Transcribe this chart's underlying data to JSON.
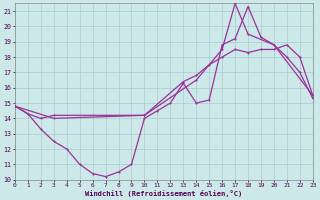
{
  "xlabel": "Windchill (Refroidissement éolien,°C)",
  "xlim": [
    0,
    23
  ],
  "ylim": [
    10,
    21.5
  ],
  "yticks": [
    10,
    11,
    12,
    13,
    14,
    15,
    16,
    17,
    18,
    19,
    20,
    21
  ],
  "xticks": [
    0,
    1,
    2,
    3,
    4,
    5,
    6,
    7,
    8,
    9,
    10,
    11,
    12,
    13,
    14,
    15,
    16,
    17,
    18,
    19,
    20,
    21,
    22,
    23
  ],
  "bg_color": "#cce8e8",
  "grid_color": "#aacccc",
  "line_color": "#993399",
  "line1_x": [
    0,
    1,
    2,
    3,
    4,
    5,
    6,
    7,
    8,
    9,
    10,
    11,
    12,
    13,
    14,
    15,
    16,
    17,
    18,
    19,
    20,
    21,
    22,
    23
  ],
  "line1_y": [
    14.8,
    14.3,
    13.3,
    12.5,
    12.0,
    11.0,
    10.4,
    10.2,
    10.5,
    11.0,
    14.0,
    14.5,
    15.0,
    16.3,
    15.0,
    15.2,
    18.8,
    19.2,
    21.3,
    19.3,
    18.8,
    18.0,
    17.0,
    15.3
  ],
  "line2_x": [
    0,
    1,
    2,
    3,
    10,
    13,
    14,
    15,
    16,
    17,
    18,
    19,
    20,
    21,
    22,
    23
  ],
  "line2_y": [
    14.8,
    14.3,
    14.0,
    14.2,
    14.2,
    16.4,
    16.8,
    17.5,
    18.0,
    18.5,
    18.3,
    18.5,
    18.5,
    18.8,
    18.0,
    15.5
  ],
  "line3_x": [
    0,
    3,
    10,
    14,
    16,
    17,
    18,
    20,
    23
  ],
  "line3_y": [
    14.8,
    14.0,
    14.2,
    16.5,
    18.5,
    21.5,
    19.5,
    18.8,
    15.5
  ]
}
